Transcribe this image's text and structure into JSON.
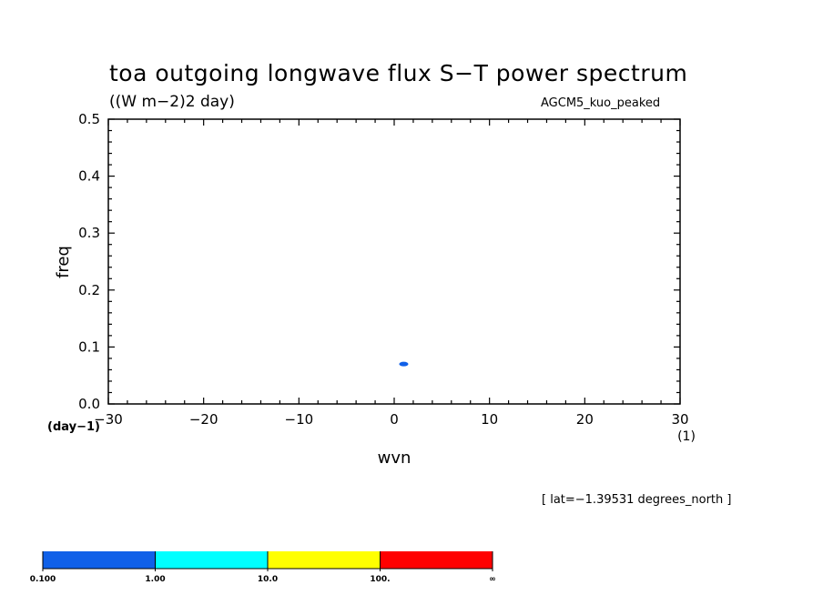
{
  "chart_data": {
    "type": "heatmap",
    "title": "toa outgoing longwave flux S−T power spectrum",
    "units_label": "((W m−2)2 day)",
    "model_label": "AGCM5_kuo_peaked",
    "xlabel": "wvn",
    "ylabel": "freq",
    "x_units": "(1)",
    "y_units": "(day−1)",
    "xlim": [
      -30,
      30
    ],
    "ylim": [
      0.0,
      0.5
    ],
    "x_ticks": [
      -30,
      -20,
      -10,
      0,
      10,
      20,
      30
    ],
    "x_tick_labels": [
      "−30",
      "−20",
      "−10",
      "0",
      "10",
      "20",
      "30"
    ],
    "y_ticks": [
      0.0,
      0.1,
      0.2,
      0.3,
      0.4,
      0.5
    ],
    "y_tick_labels": [
      "0.0",
      "0.1",
      "0.2",
      "0.3",
      "0.4",
      "0.5"
    ],
    "levels": [
      "0.100",
      "1.00",
      "10.0",
      "100.",
      "∞"
    ],
    "level_colors": [
      "#1060e8",
      "#00ffff",
      "#ffff00",
      "#ff0000"
    ],
    "features": [
      {
        "x": 1,
        "y": 0.07,
        "level_band": 0,
        "color": "#1060e8"
      }
    ],
    "annotation": "[ lat=−1.39531 degrees_north ]"
  }
}
